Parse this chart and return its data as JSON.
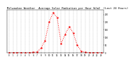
{
  "title": "Milwaukee Weather  Average Solar Radiation per Hour W/m2  (Last 24 Hours)",
  "x_values": [
    0,
    1,
    2,
    3,
    4,
    5,
    6,
    7,
    8,
    9,
    10,
    11,
    12,
    13,
    14,
    15,
    16,
    17,
    18,
    19,
    20,
    21,
    22,
    23
  ],
  "y_values": [
    0,
    0,
    0,
    0,
    0,
    0,
    2,
    5,
    30,
    80,
    200,
    260,
    230,
    60,
    120,
    170,
    130,
    50,
    10,
    2,
    0,
    0,
    0,
    0
  ],
  "line_color": "#ff0000",
  "background_color": "#ffffff",
  "grid_color": "#999999",
  "tick_color": "#000000",
  "ylim": [
    0,
    280
  ],
  "xlim": [
    -0.5,
    23.5
  ],
  "y_ticks": [
    0,
    50,
    100,
    150,
    200,
    250
  ],
  "y_tick_labels": [
    "0",
    "50",
    "100",
    "150",
    "200",
    "250"
  ],
  "x_ticks": [
    0,
    1,
    2,
    3,
    4,
    5,
    6,
    7,
    8,
    9,
    10,
    11,
    12,
    13,
    14,
    15,
    16,
    17,
    18,
    19,
    20,
    21,
    22,
    23
  ],
  "x_tick_labels": [
    "0",
    "1",
    "2",
    "3",
    "4",
    "5",
    "6",
    "7",
    "8",
    "9",
    "10",
    "11",
    "12",
    "13",
    "14",
    "15",
    "16",
    "17",
    "18",
    "19",
    "20",
    "21",
    "22",
    "23"
  ]
}
